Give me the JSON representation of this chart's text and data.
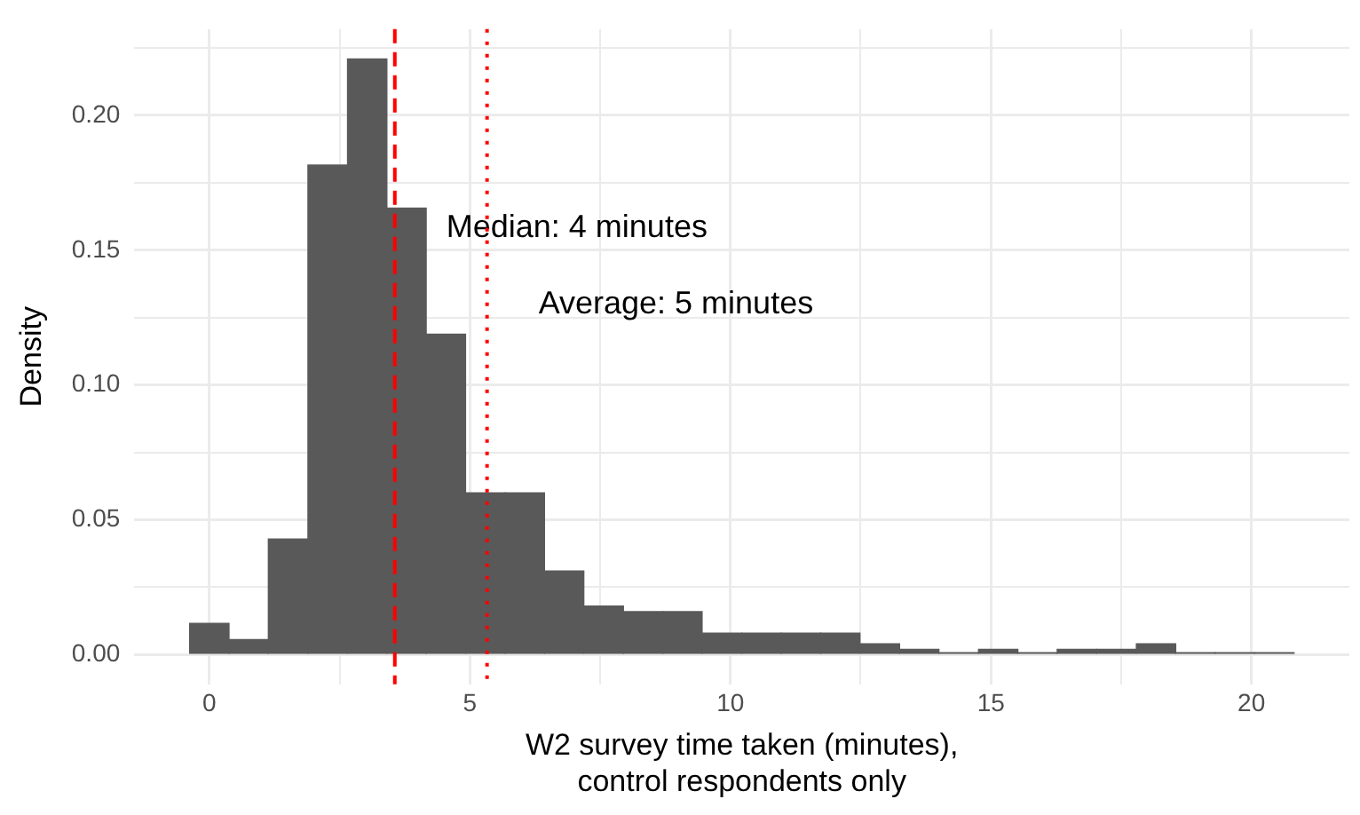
{
  "chart_data": {
    "type": "histogram",
    "xlabel": "W2 survey time taken (minutes),\ncontrol respondents only",
    "ylabel": "Density",
    "bins": [
      -0.38,
      0.38,
      1.13,
      1.89,
      2.65,
      3.41,
      4.16,
      4.92,
      5.68,
      6.43,
      7.19,
      7.95,
      8.7,
      9.46,
      10.22,
      10.98,
      11.73,
      12.49,
      13.25,
      14.0,
      14.76,
      15.52,
      16.27,
      17.03,
      17.79,
      18.55,
      19.3,
      20.06,
      20.82
    ],
    "values": [
      0.0116,
      0.0056,
      0.0429,
      0.1816,
      0.2209,
      0.1656,
      0.1189,
      0.06,
      0.06,
      0.031,
      0.018,
      0.016,
      0.016,
      0.008,
      0.008,
      0.008,
      0.008,
      0.004,
      0.002,
      0.0007,
      0.002,
      0.0007,
      0.002,
      0.002,
      0.004,
      0.0007,
      0.0007,
      0.0007
    ],
    "color": "#595959",
    "xlim": [
      -1.44,
      21.88
    ],
    "xticks": [
      0,
      {
        "value": 2.5,
        "label": null
      },
      5,
      {
        "value": 7.5,
        "label": null
      },
      10,
      {
        "value": 12.5,
        "label": null
      },
      15,
      {
        "value": 17.5,
        "label": null
      },
      20
    ],
    "ylim": [
      -0.011,
      0.232
    ],
    "yticks": [
      {
        "value": 0,
        "label": "0.00"
      },
      {
        "value": 0.025,
        "label": null
      },
      0.05,
      {
        "value": 0.075,
        "label": null
      },
      {
        "value": 0.1,
        "label": "0.10"
      },
      {
        "value": 0.125,
        "label": null
      },
      0.15,
      {
        "value": 0.175,
        "label": null
      },
      {
        "value": 0.2,
        "label": "0.20"
      },
      {
        "value": 0.225,
        "label": null
      }
    ],
    "grid": true,
    "legend": false,
    "ref_lines": [
      {
        "axis": "x",
        "value": 3.56,
        "label": "Median: 4 minutes",
        "color": "#ff0000",
        "line_style": "dashed"
      },
      {
        "axis": "x",
        "value": 5.33,
        "label": "Average: 5 minutes",
        "color": "#ff0000",
        "line_style": "dotted"
      }
    ]
  }
}
